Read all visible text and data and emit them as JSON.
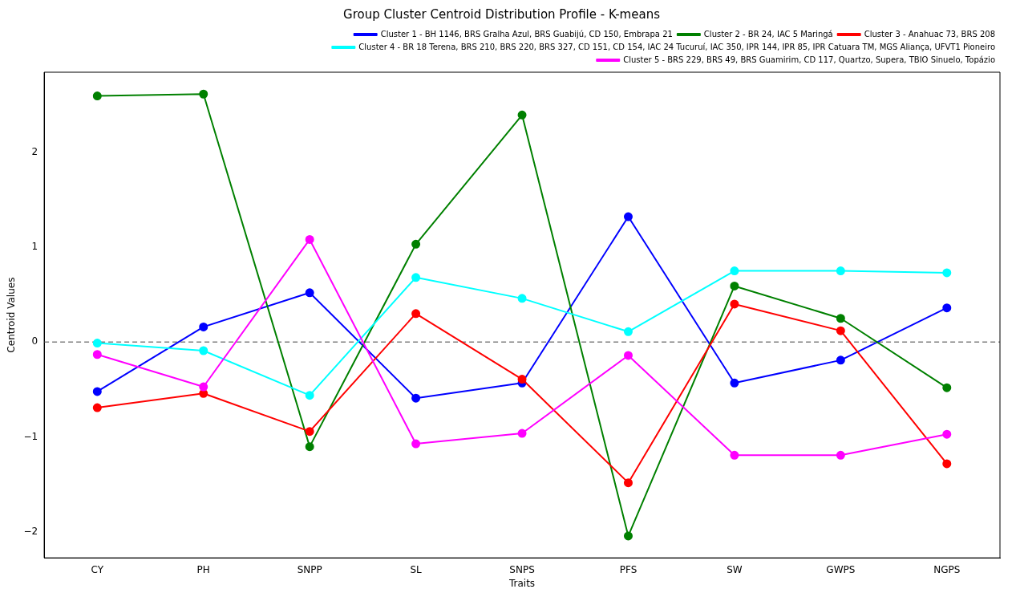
{
  "chart_data": {
    "type": "line",
    "title": "Group Cluster Centroid Distribution Profile - K-means",
    "xlabel": "Traits",
    "ylabel": "Centroid Values",
    "categories": [
      "CY",
      "PH",
      "SNPP",
      "SL",
      "SNPS",
      "PFS",
      "SW",
      "GWPS",
      "NGPS"
    ],
    "series": [
      {
        "name": "Cluster 1 - BH 1146, BRS Gralha Azul, BRS Guabijú, CD 150, Embrapa 21",
        "color": "#0000ff",
        "values": [
          -0.52,
          0.16,
          0.52,
          -0.59,
          -0.43,
          1.32,
          -0.43,
          -0.19,
          0.36
        ]
      },
      {
        "name": "Cluster 2 - BR 24, IAC 5 Maringá",
        "color": "#008000",
        "values": [
          2.59,
          2.61,
          -1.1,
          1.03,
          2.39,
          -2.04,
          0.59,
          0.25,
          -0.48
        ]
      },
      {
        "name": "Cluster 3 - Anahuac 73, BRS 208",
        "color": "#ff0000",
        "values": [
          -0.69,
          -0.54,
          -0.94,
          0.3,
          -0.39,
          -1.48,
          0.4,
          0.12,
          -1.28
        ]
      },
      {
        "name": "Cluster 4 - BR 18 Terena, BRS 210, BRS 220, BRS 327, CD 151, CD 154, IAC 24 Tucuruí, IAC 350, IPR 144, IPR 85, IPR Catuara TM, MGS Aliança, UFVT1 Pioneiro",
        "color": "#00ffff",
        "values": [
          -0.01,
          -0.09,
          -0.56,
          0.68,
          0.46,
          0.11,
          0.75,
          0.75,
          0.73
        ]
      },
      {
        "name": "Cluster 5 - BRS 229, BRS 49, BRS Guamirim, CD 117, Quartzo, Supera, TBIO Sinuelo, Topázio",
        "color": "#ff00ff",
        "values": [
          -0.13,
          -0.47,
          1.08,
          -1.07,
          -0.96,
          -0.14,
          -1.19,
          -1.19,
          -0.97
        ]
      }
    ],
    "ylim": [
      -2.27,
      2.84
    ],
    "yticks": [
      -2,
      -1,
      0,
      1,
      2
    ],
    "grid": false,
    "legend": "top right",
    "marker": "circle",
    "line_style": "solid",
    "ref_lines": [
      {
        "axis": "y",
        "value": 0,
        "color": "#808080",
        "line_style": "dashed"
      }
    ]
  }
}
